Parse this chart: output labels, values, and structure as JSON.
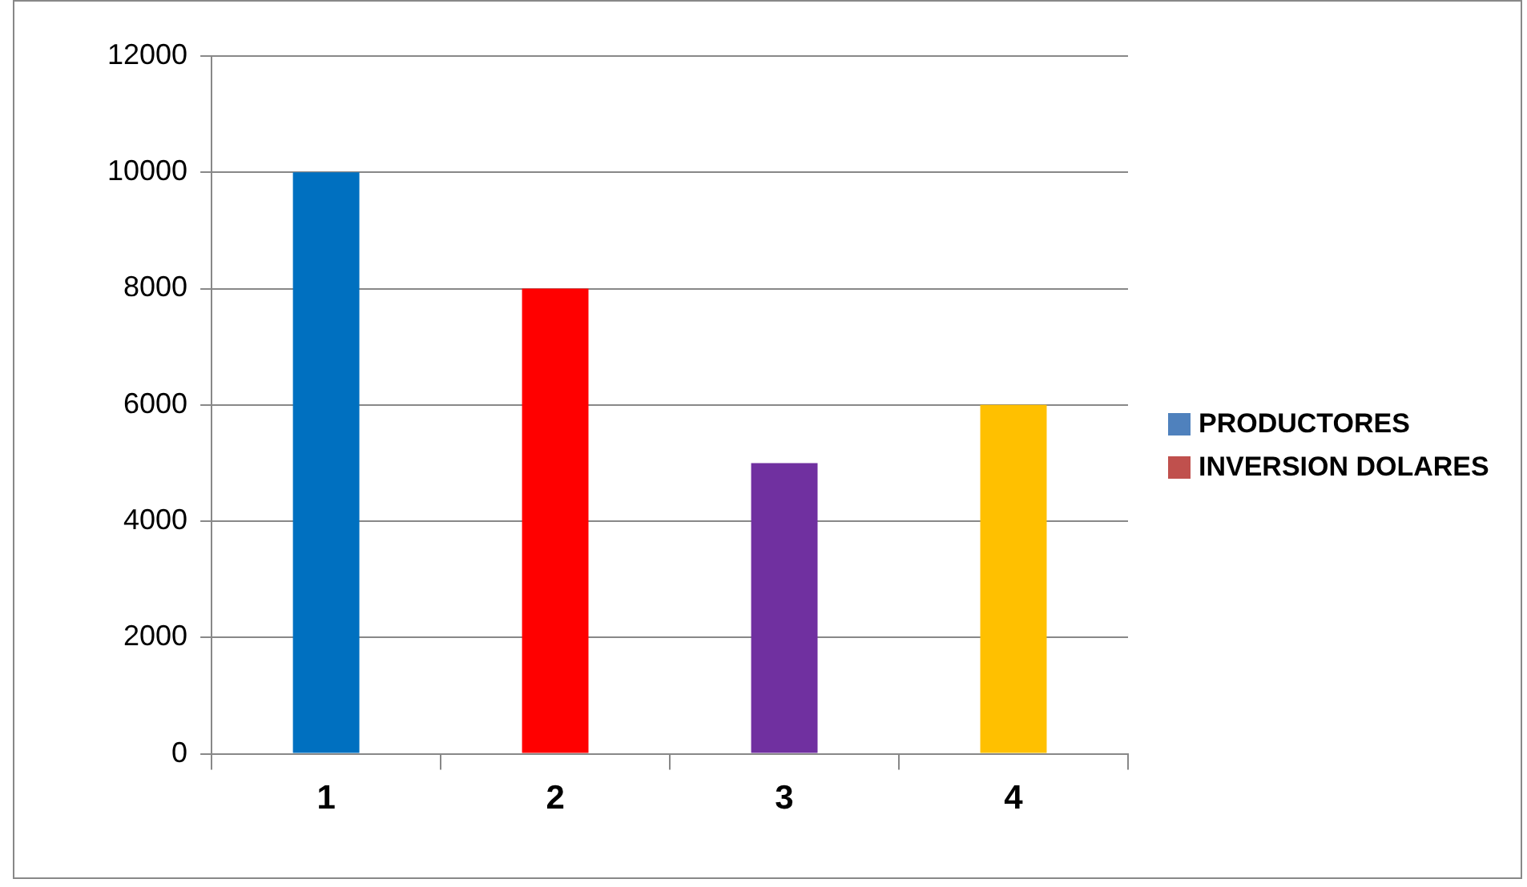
{
  "chart_data": {
    "type": "bar",
    "categories": [
      "1",
      "2",
      "3",
      "4"
    ],
    "series": [
      {
        "name": "PRODUCTORES",
        "color": "#4f81bd",
        "colors": [
          "#0070c0",
          "#ff0000",
          "#7030a0",
          "#ffc000"
        ],
        "values": [
          10000,
          8000,
          5000,
          6000
        ]
      },
      {
        "name": "INVERSION DOLARES",
        "color": "#c0504d",
        "values": [
          null,
          null,
          null,
          null
        ]
      }
    ],
    "ylim": [
      0,
      12000
    ],
    "yticks": [
      0,
      2000,
      4000,
      6000,
      8000,
      10000,
      12000
    ],
    "grid": "y",
    "legend": "right"
  }
}
